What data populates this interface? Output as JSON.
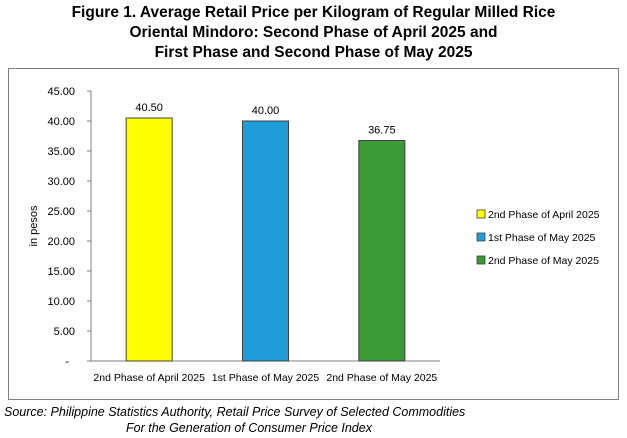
{
  "title_lines": [
    "Figure 1. Average Retail Price per Kilogram of Regular Milled Rice",
    "Oriental Mindoro: Second Phase of April 2025 and",
    "First Phase and Second Phase of May 2025"
  ],
  "source_lines": [
    "Source: Philippine Statistics Authority, Retail Price Survey of Selected Commodities",
    "For the Generation of Consumer Price Index"
  ],
  "chart_data": {
    "type": "bar",
    "title": "Figure 1. Average Retail Price per Kilogram of Regular Milled Rice Oriental Mindoro: Second Phase of April 2025 and First Phase and Second Phase of May 2025",
    "categories": [
      "2nd Phase of April 2025",
      "1st Phase of May 2025",
      "2nd Phase of May 2025"
    ],
    "values": [
      40.5,
      40.0,
      36.75
    ],
    "value_labels": [
      "40.50",
      "40.00",
      "36.75"
    ],
    "colors": [
      "#ffff00",
      "#1f9ed9",
      "#3a9a36"
    ],
    "ylabel": "in pesos",
    "xlabel": "",
    "ylim": [
      0,
      45
    ],
    "yticks": [
      0,
      5,
      10,
      15,
      20,
      25,
      30,
      35,
      40,
      45
    ],
    "ytick_labels": [
      "-",
      "5.00",
      "10.00",
      "15.00",
      "20.00",
      "25.00",
      "30.00",
      "35.00",
      "40.00",
      "45.00"
    ],
    "legend": {
      "position": "right",
      "entries": [
        "2nd Phase of April 2025",
        "1st Phase of May 2025",
        "2nd Phase of May 2025"
      ]
    },
    "grid": false
  }
}
